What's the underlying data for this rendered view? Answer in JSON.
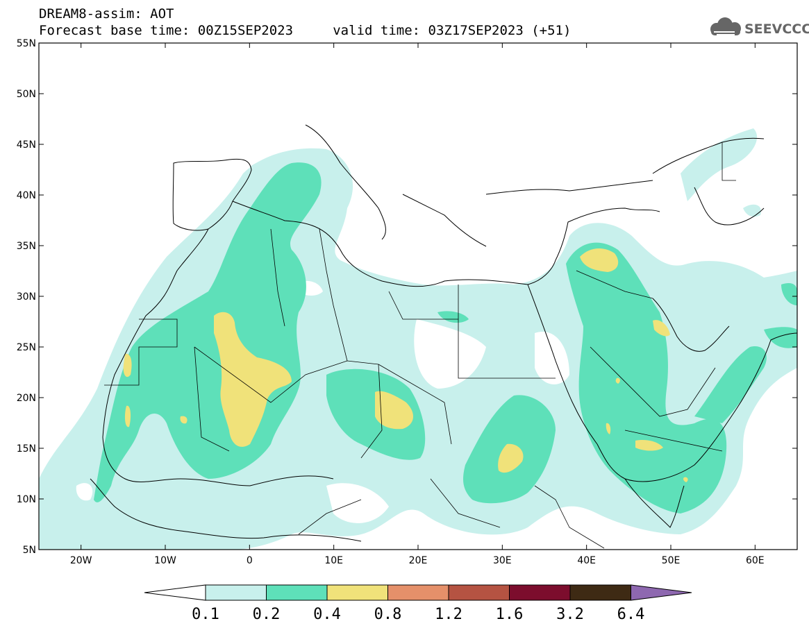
{
  "header": {
    "title": "DREAM8-assim: AOT",
    "subtitle": "Forecast base time: 00Z15SEP2023     valid time: 03Z17SEP2023 (+51)"
  },
  "logo": {
    "text": "SEEVCCC",
    "icon": "cloud-icon"
  },
  "map": {
    "lat_labels": [
      "55N",
      "50N",
      "45N",
      "40N",
      "35N",
      "30N",
      "25N",
      "20N",
      "15N",
      "10N",
      "5N"
    ],
    "lon_labels": [
      "20W",
      "10W",
      "0",
      "10E",
      "20E",
      "30E",
      "40E",
      "50E",
      "60E"
    ],
    "lon_range": [
      -25,
      65
    ],
    "lat_range": [
      5,
      55
    ],
    "colors": {
      "c01": "#c8f0ec",
      "c02": "#5ee0b9",
      "c04": "#f0e27a",
      "c08": "#e5906a",
      "c12": "#b55342",
      "c16": "#7c0d2d",
      "c32": "#3e2a14",
      "c64": "#8e68b0"
    }
  },
  "colorbar": {
    "labels": [
      "0.1",
      "0.2",
      "0.4",
      "0.8",
      "1.2",
      "1.6",
      "3.2",
      "6.4"
    ],
    "colors": [
      "#c8f0ec",
      "#5ee0b9",
      "#f0e27a",
      "#e5906a",
      "#b55342",
      "#7c0d2d",
      "#3e2a14"
    ],
    "over_color": "#8e68b0",
    "under_color": "#ffffff"
  }
}
